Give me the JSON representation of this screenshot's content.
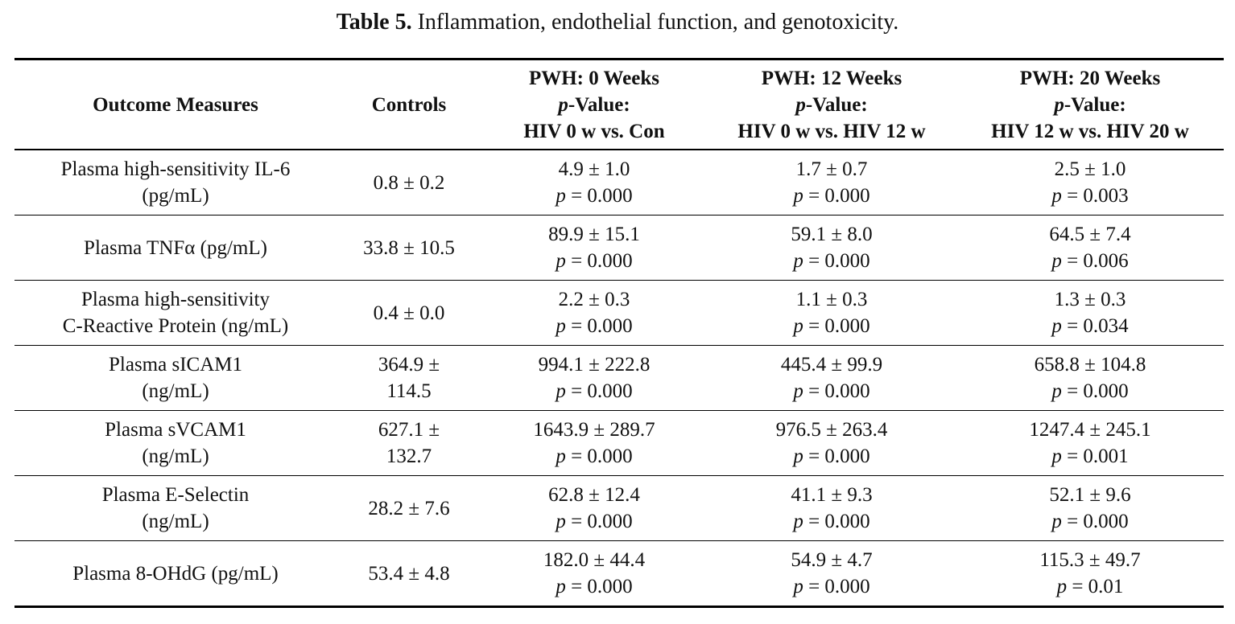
{
  "caption": {
    "label": "Table 5.",
    "text": "Inflammation, endothelial function, and genotoxicity."
  },
  "header": {
    "col1": "Outcome Measures",
    "col2": "Controls",
    "col3": {
      "line1": "PWH: 0 Weeks",
      "p_letter": "p",
      "line2_rest": "-Value:",
      "line3": "HIV 0 w vs. Con"
    },
    "col4": {
      "line1": "PWH: 12 Weeks",
      "p_letter": "p",
      "line2_rest": "-Value:",
      "line3": "HIV 0 w vs. HIV 12 w"
    },
    "col5": {
      "line1": "PWH: 20 Weeks",
      "p_letter": "p",
      "line2_rest": "-Value:",
      "line3": "HIV 12 w vs. HIV 20 w"
    }
  },
  "rows": [
    {
      "measure": [
        "Plasma high-sensitivity IL-6",
        "(pg/mL)"
      ],
      "controls": [
        "0.8 ± 0.2"
      ],
      "w0": {
        "mean": "4.9 ± 1.0",
        "p": "= 0.000"
      },
      "w12": {
        "mean": "1.7 ± 0.7",
        "p": "= 0.000"
      },
      "w20": {
        "mean": "2.5 ± 1.0",
        "p": "= 0.003"
      }
    },
    {
      "measure": [
        "Plasma TNFα (pg/mL)"
      ],
      "controls": [
        "33.8 ± 10.5"
      ],
      "w0": {
        "mean": "89.9 ± 15.1",
        "p": "= 0.000"
      },
      "w12": {
        "mean": "59.1 ± 8.0",
        "p": "= 0.000"
      },
      "w20": {
        "mean": "64.5 ± 7.4",
        "p": "= 0.006"
      }
    },
    {
      "measure": [
        "Plasma high-sensitivity",
        "C-Reactive Protein (ng/mL)"
      ],
      "controls": [
        "0.4 ± 0.0"
      ],
      "w0": {
        "mean": "2.2 ± 0.3",
        "p": "= 0.000"
      },
      "w12": {
        "mean": "1.1 ± 0.3",
        "p": "= 0.000"
      },
      "w20": {
        "mean": "1.3 ± 0.3",
        "p": "= 0.034"
      }
    },
    {
      "measure": [
        "Plasma sICAM1",
        "(ng/mL)"
      ],
      "controls": [
        "364.9 ±",
        "114.5"
      ],
      "w0": {
        "mean": "994.1 ± 222.8",
        "p": "= 0.000"
      },
      "w12": {
        "mean": "445.4 ± 99.9",
        "p": "= 0.000"
      },
      "w20": {
        "mean": "658.8 ± 104.8",
        "p": "= 0.000"
      }
    },
    {
      "measure": [
        "Plasma sVCAM1",
        "(ng/mL)"
      ],
      "controls": [
        "627.1 ±",
        "132.7"
      ],
      "w0": {
        "mean": "1643.9 ± 289.7",
        "p": "= 0.000"
      },
      "w12": {
        "mean": "976.5 ± 263.4",
        "p": "= 0.000"
      },
      "w20": {
        "mean": "1247.4 ± 245.1",
        "p": "= 0.001"
      }
    },
    {
      "measure": [
        "Plasma E-Selectin",
        "(ng/mL)"
      ],
      "controls": [
        "28.2 ± 7.6"
      ],
      "w0": {
        "mean": "62.8 ± 12.4",
        "p": "= 0.000"
      },
      "w12": {
        "mean": "41.1 ± 9.3",
        "p": "= 0.000"
      },
      "w20": {
        "mean": "52.1 ± 9.6",
        "p": "= 0.000"
      }
    },
    {
      "measure": [
        "Plasma 8-OHdG (pg/mL)"
      ],
      "controls": [
        "53.4 ± 4.8"
      ],
      "w0": {
        "mean": "182.0 ± 44.4",
        "p": "= 0.000"
      },
      "w12": {
        "mean": "54.9 ± 4.7",
        "p": "= 0.000"
      },
      "w20": {
        "mean": "115.3 ± 49.7",
        "p": "= 0.01"
      }
    }
  ],
  "p_symbol": "p"
}
